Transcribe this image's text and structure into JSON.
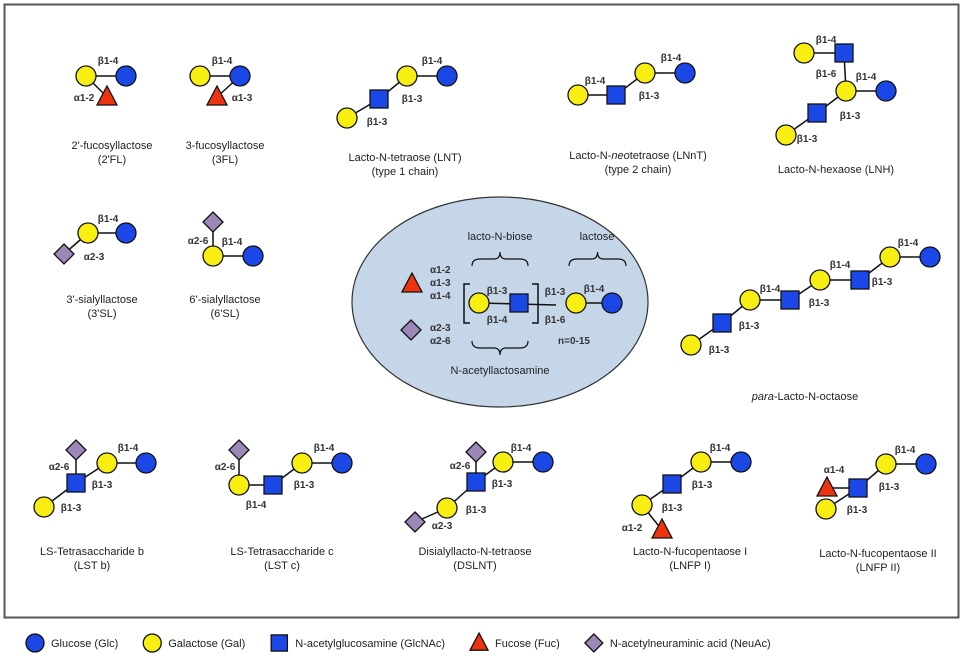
{
  "colors": {
    "Glc": "#1a47e6",
    "Gal": "#f8ee12",
    "GlcNAc": "#1a47e6",
    "Fuc": "#ee3311",
    "NeuAc": "#9c87b8",
    "core_bg": "#c5d6e8"
  },
  "structures": [
    {
      "id": "2fl",
      "name": [
        [
          {
            "t": "2'-fucosyllactose"
          }
        ],
        [
          {
            "t": "(2'FL)"
          }
        ]
      ],
      "residues": [
        "Gal",
        "Glc",
        "Fuc"
      ],
      "linkages": [
        "β1-4",
        "α1-2"
      ]
    },
    {
      "id": "3fl",
      "name": [
        [
          {
            "t": "3-fucosyllactose"
          }
        ],
        [
          {
            "t": "(3FL)"
          }
        ]
      ],
      "residues": [
        "Gal",
        "Glc",
        "Fuc"
      ],
      "linkages": [
        "β1-4",
        "α1-3"
      ]
    },
    {
      "id": "lnt",
      "name": [
        [
          {
            "t": "Lacto-N-tetraose (LNT)"
          }
        ],
        [
          {
            "t": "(type 1 chain)"
          }
        ]
      ],
      "residues": [
        "Gal",
        "GlcNAc",
        "Gal",
        "Glc"
      ],
      "linkages": [
        "β1-4",
        "β1-3",
        "β1-3"
      ]
    },
    {
      "id": "lnnt",
      "name": [
        [
          {
            "t": "Lacto-N-"
          },
          {
            "t": "neo",
            "i": true
          },
          {
            "t": "tetraose (LNnT)"
          }
        ],
        [
          {
            "t": "(type 2 chain)"
          }
        ]
      ],
      "residues": [
        "Gal",
        "GlcNAc",
        "Gal",
        "Glc"
      ],
      "linkages": [
        "β1-4",
        "β1-4",
        "β1-3"
      ]
    },
    {
      "id": "lnh",
      "name": [
        [
          {
            "t": "Lacto-N-hexaose (LNH)"
          }
        ]
      ],
      "residues": [
        "Gal",
        "GlcNAc",
        "Gal",
        "Glc",
        "GlcNAc",
        "Gal"
      ],
      "linkages": [
        "β1-4",
        "β1-6",
        "β1-4",
        "β1-3",
        "β1-3"
      ]
    },
    {
      "id": "3sl",
      "name": [
        [
          {
            "t": "3'-sialyllactose"
          }
        ],
        [
          {
            "t": "(3'SL)"
          }
        ]
      ],
      "residues": [
        "Gal",
        "Glc",
        "NeuAc"
      ],
      "linkages": [
        "β1-4",
        "α2-3"
      ]
    },
    {
      "id": "6sl",
      "name": [
        [
          {
            "t": "6'-sialyllactose"
          }
        ],
        [
          {
            "t": "(6'SL)"
          }
        ]
      ],
      "residues": [
        "NeuAc",
        "Gal",
        "Glc"
      ],
      "linkages": [
        "α2-6",
        "β1-4"
      ]
    },
    {
      "id": "plno",
      "name": [
        [
          {
            "t": "para",
            "i": true
          },
          {
            "t": "-Lacto-N-octaose"
          }
        ]
      ],
      "residues": [
        "Gal",
        "GlcNAc",
        "Gal",
        "GlcNAc",
        "Gal",
        "GlcNAc",
        "Gal",
        "Glc"
      ],
      "linkages": [
        "β1-3",
        "β1-3",
        "β1-4",
        "β1-3",
        "β1-4",
        "β1-3",
        "β1-4"
      ]
    },
    {
      "id": "lstb",
      "name": [
        [
          {
            "t": "LS-Tetrasaccharide b"
          }
        ],
        [
          {
            "t": "(LST b)"
          }
        ]
      ],
      "residues": [
        "NeuAc",
        "GlcNAc",
        "Gal",
        "Gal",
        "Glc"
      ],
      "linkages": [
        "α2-6",
        "β1-3",
        "β1-3",
        "β1-4"
      ]
    },
    {
      "id": "lstc",
      "name": [
        [
          {
            "t": "LS-Tetrasaccharide c"
          }
        ],
        [
          {
            "t": "(LST c)"
          }
        ]
      ],
      "residues": [
        "NeuAc",
        "Gal",
        "GlcNAc",
        "Gal",
        "Glc"
      ],
      "linkages": [
        "α2-6",
        "β1-4",
        "β1-3",
        "β1-4"
      ]
    },
    {
      "id": "dslnt",
      "name": [
        [
          {
            "t": "Disialyllacto-N-tetraose"
          }
        ],
        [
          {
            "t": "(DSLNT)"
          }
        ]
      ],
      "residues": [
        "NeuAc",
        "GlcNAc",
        "Gal",
        "NeuAc",
        "Gal",
        "Glc"
      ],
      "linkages": [
        "α2-6",
        "β1-3",
        "β1-3",
        "α2-3",
        "β1-4"
      ]
    },
    {
      "id": "lnfp1",
      "name": [
        [
          {
            "t": "Lacto-N-fucopentaose I"
          }
        ],
        [
          {
            "t": "(LNFP I)"
          }
        ]
      ],
      "residues": [
        "Gal",
        "GlcNAc",
        "Gal",
        "Glc",
        "Fuc"
      ],
      "linkages": [
        "β1-4",
        "β1-3",
        "β1-3",
        "α1-2"
      ]
    },
    {
      "id": "lnfp2",
      "name": [
        [
          {
            "t": "Lacto-N-fucopentaose II"
          }
        ],
        [
          {
            "t": "(LNFP II)"
          }
        ]
      ],
      "residues": [
        "Fuc",
        "GlcNAc",
        "Gal",
        "Gal",
        "Glc"
      ],
      "linkages": [
        "α1-4",
        "β1-3",
        "β1-3",
        "β1-4"
      ]
    }
  ],
  "core": {
    "fucose_linkages": [
      "α1-2",
      "α1-3",
      "α1-4"
    ],
    "sialic_linkages": [
      "α2-3",
      "α2-6"
    ],
    "lacto_n_biose_label": "lacto-N-biose",
    "lactose_label": "lactose",
    "repeat_linkages": [
      "β1-3",
      "β1-4"
    ],
    "branch_linkages": [
      "β1-3",
      "β1-6"
    ],
    "lactose_linkage": "β1-4",
    "repeat_count": "n=0-15",
    "n_acetyllactosamine_label": "N-acetyllactosamine"
  },
  "legend": [
    {
      "type": "Glc",
      "label": "Glucose (Glc)"
    },
    {
      "type": "Gal",
      "label": "Galactose (Gal)"
    },
    {
      "type": "GlcNAc",
      "label": "N-acetylglucosamine (GlcNAc)"
    },
    {
      "type": "Fuc",
      "label": "Fucose (Fuc)"
    },
    {
      "type": "NeuAc",
      "label": "N-acetylneuraminic acid (NeuAc)"
    }
  ]
}
